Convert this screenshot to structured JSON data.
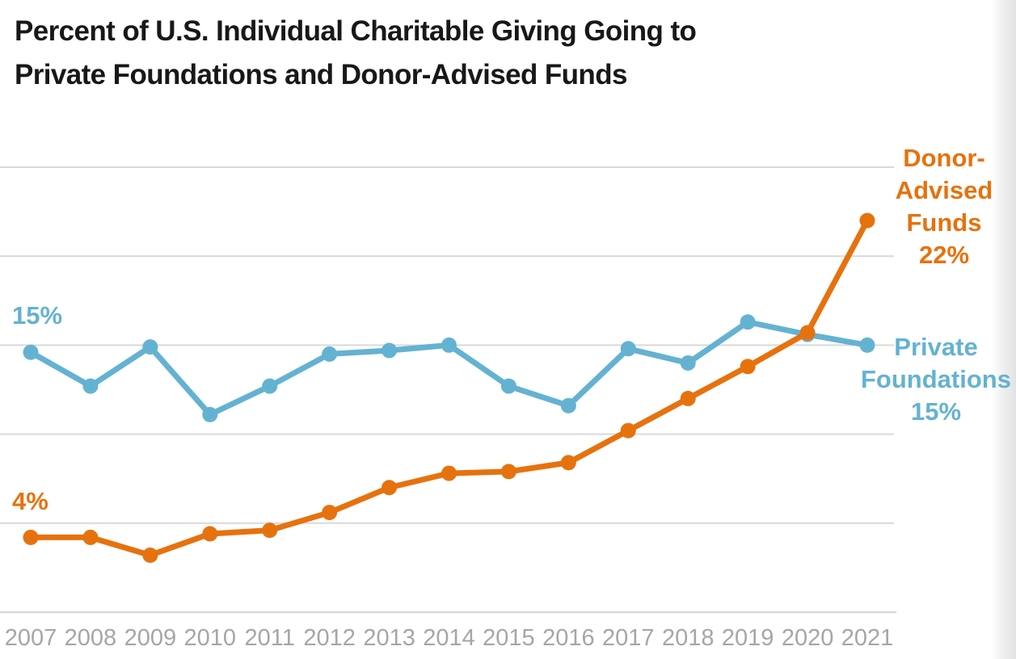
{
  "title_lines": [
    "Percent of U.S. Individual Charitable Giving Going to",
    "Private Foundations and Donor-Advised Funds"
  ],
  "colors": {
    "daf": "#E6720E",
    "pf": "#64B2D2",
    "grid": "#D9D9D9",
    "tick_label": "#A6A6A6",
    "title": "#181818",
    "background": "#FFFFFF"
  },
  "annotations": {
    "daf_start_label": "4%",
    "pf_start_label": "15%",
    "daf_end_label_lines": [
      "Donor-",
      "Advised",
      "Funds",
      "22%"
    ],
    "pf_end_label_lines": [
      "Private",
      "Foundations",
      "15%"
    ]
  },
  "chart_data": {
    "type": "line",
    "title": "Percent of U.S. Individual Charitable Giving Going to Private Foundations and Donor-Advised Funds",
    "categories": [
      "2007",
      "2008",
      "2009",
      "2010",
      "2011",
      "2012",
      "2013",
      "2014",
      "2015",
      "2016",
      "2017",
      "2018",
      "2019",
      "2020",
      "2021"
    ],
    "series": [
      {
        "name": "Private Foundations",
        "color_key": "pf",
        "values": [
          14.6,
          12.7,
          14.9,
          11.1,
          12.7,
          14.5,
          14.7,
          15.0,
          12.7,
          11.6,
          14.8,
          14.0,
          16.3,
          15.6,
          15.0
        ],
        "first_value_label": "15%",
        "last_value_label": "15%"
      },
      {
        "name": "Donor-Advised Funds",
        "color_key": "daf",
        "values": [
          4.2,
          4.2,
          3.2,
          4.4,
          4.6,
          5.6,
          7.0,
          7.8,
          7.9,
          8.4,
          10.2,
          12.0,
          13.8,
          15.7,
          22.0
        ],
        "first_value_label": "4%",
        "last_value_label": "22%"
      }
    ],
    "xlabel": "",
    "ylabel": "",
    "ylim": [
      0,
      27
    ],
    "gridline_values": [
      5,
      10,
      15,
      20,
      25
    ],
    "grid": true,
    "legend_position": "inline-end-annotations",
    "x_axis_labels_shown": true,
    "y_axis_labels_shown": false
  }
}
